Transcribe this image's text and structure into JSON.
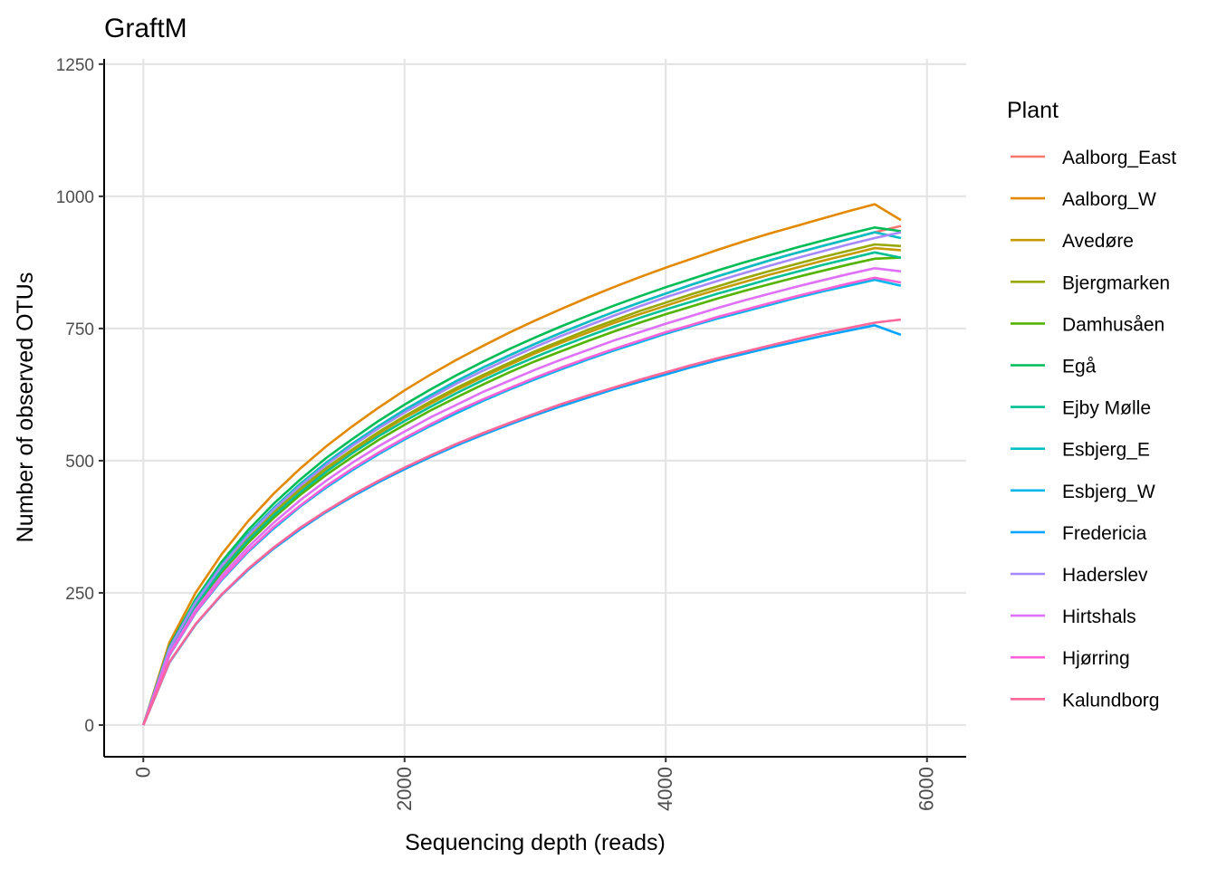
{
  "chart_data": {
    "type": "line",
    "title": "GraftM",
    "xlabel": "Sequencing depth (reads)",
    "ylabel": "Number of observed OTUs",
    "xlim": [
      -300,
      6300
    ],
    "ylim": [
      -60,
      1260
    ],
    "xticks": [
      0,
      2000,
      4000,
      6000
    ],
    "yticks": [
      0,
      250,
      500,
      750,
      1000,
      1250
    ],
    "grid": true,
    "legend": {
      "title": "Plant",
      "placement": "right"
    },
    "x": [
      0,
      200,
      400,
      600,
      800,
      1000,
      1200,
      1400,
      1600,
      1800,
      2000,
      2200,
      2400,
      2600,
      2800,
      3000,
      3200,
      3400,
      3600,
      3800,
      4000,
      4200,
      4400,
      4600,
      4800,
      5000,
      5200,
      5400,
      5600,
      5800
    ],
    "series": [
      {
        "name": "Aalborg_East",
        "color": "#F8766D",
        "values": [
          0,
          146,
          234,
          303,
          361,
          411,
          456,
          496,
          532,
          565,
          596,
          624,
          651,
          676,
          699,
          721,
          742,
          762,
          781,
          799,
          816,
          833,
          849,
          864,
          879,
          893,
          906,
          919,
          932,
          944
        ]
      },
      {
        "name": "Aalborg_W",
        "color": "#E38900",
        "values": [
          0,
          156,
          250,
          323,
          385,
          438,
          485,
          527,
          565,
          600,
          633,
          663,
          691,
          717,
          742,
          765,
          787,
          808,
          828,
          847,
          865,
          882,
          899,
          915,
          930,
          944,
          958,
          972,
          985,
          955
        ]
      },
      {
        "name": "Avedøre",
        "color": "#C49A00",
        "values": [
          0,
          142,
          228,
          295,
          352,
          401,
          444,
          483,
          518,
          551,
          581,
          608,
          634,
          658,
          681,
          703,
          723,
          742,
          760,
          777,
          793,
          809,
          824,
          838,
          852,
          865,
          878,
          890,
          902,
          898
        ]
      },
      {
        "name": "Bjergmarken",
        "color": "#99A800",
        "values": [
          0,
          143,
          230,
          297,
          354,
          403,
          447,
          486,
          521,
          554,
          584,
          612,
          638,
          662,
          685,
          707,
          727,
          747,
          765,
          783,
          799,
          815,
          830,
          845,
          859,
          872,
          885,
          897,
          909,
          906
        ]
      },
      {
        "name": "Damhusåen",
        "color": "#53B400",
        "values": [
          0,
          139,
          223,
          289,
          344,
          392,
          435,
          473,
          507,
          539,
          568,
          595,
          620,
          644,
          667,
          688,
          707,
          726,
          744,
          761,
          777,
          792,
          807,
          821,
          834,
          847,
          859,
          871,
          882,
          884
        ]
      },
      {
        "name": "Egå",
        "color": "#00BC56",
        "values": [
          0,
          149,
          238,
          309,
          368,
          419,
          464,
          505,
          541,
          575,
          606,
          635,
          662,
          687,
          711,
          733,
          754,
          774,
          793,
          811,
          828,
          844,
          860,
          875,
          889,
          903,
          916,
          929,
          941,
          934
        ]
      },
      {
        "name": "Ejby Mølle",
        "color": "#00C094",
        "values": [
          0,
          141,
          226,
          293,
          349,
          397,
          440,
          479,
          514,
          546,
          575,
          602,
          628,
          652,
          675,
          696,
          716,
          735,
          753,
          770,
          786,
          801,
          816,
          830,
          844,
          857,
          870,
          882,
          894,
          884
        ]
      },
      {
        "name": "Esbjerg_E",
        "color": "#00BFC4",
        "values": [
          0,
          146,
          234,
          303,
          361,
          411,
          456,
          496,
          532,
          565,
          596,
          624,
          651,
          676,
          699,
          721,
          742,
          762,
          781,
          799,
          816,
          833,
          849,
          864,
          879,
          893,
          906,
          919,
          932,
          921
        ]
      },
      {
        "name": "Esbjerg_W",
        "color": "#00B6EB",
        "values": [
          0,
          132,
          212,
          274,
          327,
          372,
          413,
          449,
          482,
          512,
          540,
          566,
          590,
          613,
          634,
          654,
          673,
          691,
          708,
          724,
          740,
          755,
          769,
          782,
          795,
          808,
          820,
          831,
          842,
          831
        ]
      },
      {
        "name": "Fredericia",
        "color": "#06A4FF",
        "values": [
          0,
          118,
          190,
          246,
          293,
          334,
          370,
          403,
          432,
          459,
          484,
          507,
          529,
          549,
          568,
          586,
          603,
          619,
          635,
          649,
          663,
          677,
          690,
          702,
          714,
          725,
          736,
          746,
          756,
          738
        ]
      },
      {
        "name": "Haderslev",
        "color": "#A58AFF",
        "values": [
          0,
          145,
          232,
          301,
          358,
          408,
          452,
          492,
          528,
          561,
          591,
          619,
          646,
          670,
          693,
          715,
          736,
          755,
          774,
          792,
          809,
          825,
          840,
          855,
          869,
          883,
          896,
          909,
          921,
          932
        ]
      },
      {
        "name": "Hirtshals",
        "color": "#DF70F8",
        "values": [
          0,
          136,
          218,
          282,
          336,
          383,
          425,
          462,
          496,
          527,
          555,
          582,
          606,
          630,
          651,
          672,
          691,
          709,
          727,
          743,
          759,
          774,
          789,
          803,
          816,
          829,
          841,
          853,
          864,
          858
        ]
      },
      {
        "name": "Hjørring",
        "color": "#FB61D7",
        "values": [
          0,
          133,
          213,
          276,
          329,
          375,
          415,
          452,
          485,
          515,
          543,
          569,
          594,
          616,
          637,
          657,
          676,
          694,
          711,
          727,
          743,
          757,
          772,
          785,
          798,
          811,
          823,
          835,
          846,
          837
        ]
      },
      {
        "name": "Kalundborg",
        "color": "#FF6699",
        "values": [
          0,
          119,
          191,
          247,
          295,
          336,
          373,
          405,
          435,
          462,
          487,
          510,
          532,
          552,
          571,
          589,
          607,
          623,
          638,
          653,
          667,
          681,
          694,
          706,
          718,
          730,
          741,
          751,
          761,
          767
        ]
      }
    ]
  }
}
